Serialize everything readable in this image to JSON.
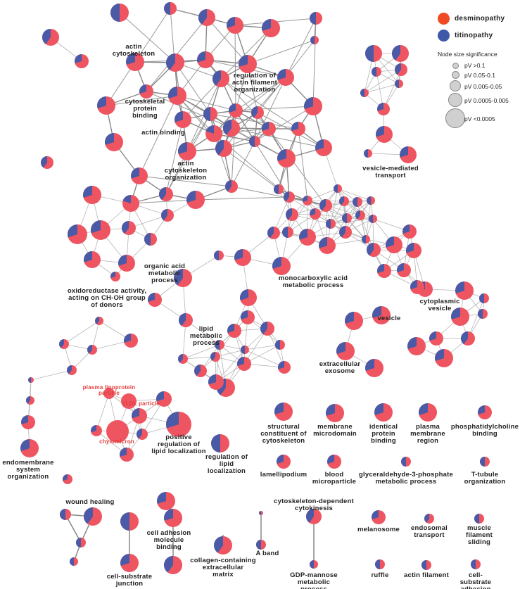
{
  "colors": {
    "desminopathy": "#f04a25",
    "titinopathy": "#3f58a8",
    "pie_red": "#ef5461",
    "pie_blue": "#4a5aa6",
    "edge": "#999999"
  },
  "legend": {
    "groups": [
      {
        "label": "desminopathy"
      },
      {
        "label": "titinopathy"
      }
    ],
    "size_title": "Node size significance",
    "sizes": [
      "pV >0.1",
      "pV 0.05-0.1",
      "pV 0.005-0.05",
      "pV 0.0005-0.005",
      "pV <0.0005"
    ]
  },
  "labels": [
    {
      "text": "actin\ncytoskeleton"
    },
    {
      "text": "regulation of\nactin filament\norganization"
    },
    {
      "text": "cytoskeletal\nprotein\nbinding"
    },
    {
      "text": "actin binding"
    },
    {
      "text": "actin\ncytoskeleton\norganization"
    },
    {
      "text": "vesicle-mediated\ntransport"
    },
    {
      "text": "organic acid\nmetabolic\nprocess"
    },
    {
      "text": "monocarboxylic acid\nmetabolic process"
    },
    {
      "text": "oxidoreductase activity,\nacting on CH-OH group\nof donors"
    },
    {
      "text": "lipid\nmetabolic\nprocess"
    },
    {
      "text": "vesicle"
    },
    {
      "text": "cytoplasmic\nvesicle"
    },
    {
      "text": "extracellular\nexosome"
    },
    {
      "text": "plasma lipoprotein\nparticle",
      "red": true
    },
    {
      "text": "VLDL particle",
      "red": true
    },
    {
      "text": "chylomicron",
      "red": true
    },
    {
      "text": "positive\nregulation of\nlipid localization"
    },
    {
      "text": "regulation of\nlipid\nlocalization"
    },
    {
      "text": "endomembrane\nsystem\norganization"
    },
    {
      "text": "structural\nconstituent of\ncytoskeleton"
    },
    {
      "text": "membrane\nmicrodomain"
    },
    {
      "text": "identical\nprotein\nbinding"
    },
    {
      "text": "plasma\nmembrane\nregion"
    },
    {
      "text": "phosphatidylcholine\nbinding"
    },
    {
      "text": "lamellipodium"
    },
    {
      "text": "blood\nmicroparticle"
    },
    {
      "text": "glyceraldehyde-3-phosphate\nmetabolic process"
    },
    {
      "text": "T-tubule\norganization"
    },
    {
      "text": "wound healing"
    },
    {
      "text": "cell adhesion\nmolecule\nbinding"
    },
    {
      "text": "cytoskeleton-dependent\ncytokinesis"
    },
    {
      "text": "collagen-containing\nextracellular\nmatrix"
    },
    {
      "text": "A band"
    },
    {
      "text": "melanosome"
    },
    {
      "text": "endosomal\ntransport"
    },
    {
      "text": "muscle\nfilament\nsliding"
    },
    {
      "text": "cell-substrate\njunction"
    },
    {
      "text": "GDP-mannose\nmetabolic\nprocess"
    },
    {
      "text": "ruffle"
    },
    {
      "text": "actin filament"
    },
    {
      "text": "cell-substrate\nadhesion"
    }
  ]
}
